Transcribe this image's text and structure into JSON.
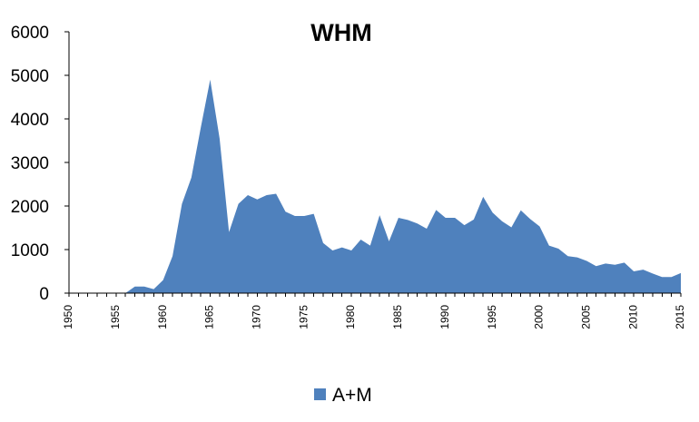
{
  "chart_data": {
    "type": "area",
    "title": "WHM",
    "xlabel": "",
    "ylabel": "",
    "xlim": [
      1950,
      2015
    ],
    "ylim": [
      0,
      6000
    ],
    "y_ticks": [
      0,
      1000,
      2000,
      3000,
      4000,
      5000,
      6000
    ],
    "x_ticks": [
      1950,
      1955,
      1960,
      1965,
      1970,
      1975,
      1980,
      1985,
      1990,
      1995,
      2000,
      2005,
      2010,
      2015
    ],
    "grid": false,
    "legend_position": "bottom",
    "x": [
      1950,
      1951,
      1952,
      1953,
      1954,
      1955,
      1956,
      1957,
      1958,
      1959,
      1960,
      1961,
      1962,
      1963,
      1964,
      1965,
      1966,
      1967,
      1968,
      1969,
      1970,
      1971,
      1972,
      1973,
      1974,
      1975,
      1976,
      1977,
      1978,
      1979,
      1980,
      1981,
      1982,
      1983,
      1984,
      1985,
      1986,
      1987,
      1988,
      1989,
      1990,
      1991,
      1992,
      1993,
      1994,
      1995,
      1996,
      1997,
      1998,
      1999,
      2000,
      2001,
      2002,
      2003,
      2004,
      2005,
      2006,
      2007,
      2008,
      2009,
      2010,
      2011,
      2012,
      2013,
      2014,
      2015
    ],
    "series": [
      {
        "name": "A+M",
        "color": "#4f81bd",
        "values": [
          0,
          0,
          0,
          0,
          0,
          0,
          0,
          150,
          150,
          90,
          300,
          850,
          2050,
          2650,
          3800,
          4900,
          3550,
          1400,
          2050,
          2250,
          2150,
          2250,
          2280,
          1870,
          1770,
          1770,
          1820,
          1150,
          980,
          1050,
          980,
          1230,
          1090,
          1790,
          1190,
          1730,
          1680,
          1600,
          1480,
          1910,
          1730,
          1730,
          1560,
          1690,
          2210,
          1850,
          1650,
          1510,
          1900,
          1700,
          1530,
          1090,
          1020,
          850,
          820,
          740,
          620,
          680,
          650,
          700,
          500,
          540,
          450,
          370,
          370,
          460
        ]
      }
    ]
  }
}
